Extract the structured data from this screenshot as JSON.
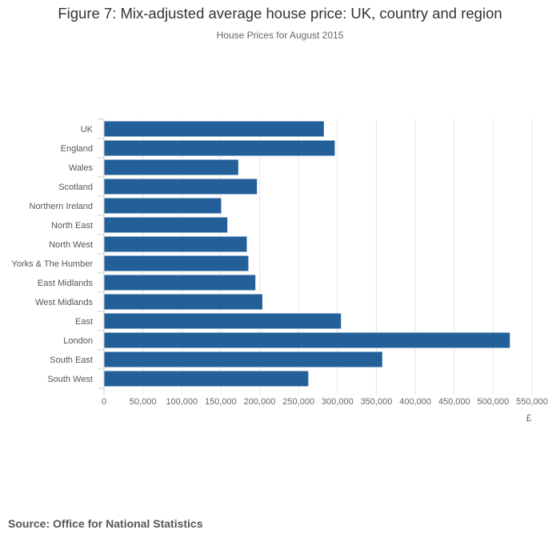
{
  "chart_data": {
    "type": "bar",
    "orientation": "horizontal",
    "title": "Figure 7: Mix-adjusted average house price: UK, country and region",
    "subtitle": "House Prices for August 2015",
    "xlabel": "£",
    "ylabel": "",
    "xlim": [
      0,
      550000
    ],
    "xticks": [
      0,
      50000,
      100000,
      150000,
      200000,
      250000,
      300000,
      350000,
      400000,
      450000,
      500000,
      550000
    ],
    "xtick_labels": [
      "0",
      "50,000",
      "100,000",
      "150,000",
      "200,000",
      "250,000",
      "300,000",
      "350,000",
      "400,000",
      "450,000",
      "500,000",
      "550,000"
    ],
    "grid": true,
    "bar_color": "#235f99",
    "categories": [
      "UK",
      "England",
      "Wales",
      "Scotland",
      "Northern Ireland",
      "North East",
      "North West",
      "Yorks & The Humber",
      "East Midlands",
      "West Midlands",
      "East",
      "London",
      "South East",
      "South West"
    ],
    "values": [
      282000,
      296000,
      172000,
      196000,
      150000,
      158000,
      183000,
      185000,
      194000,
      203000,
      304000,
      521000,
      357000,
      262000
    ]
  },
  "source": "Source: Office for National Statistics"
}
